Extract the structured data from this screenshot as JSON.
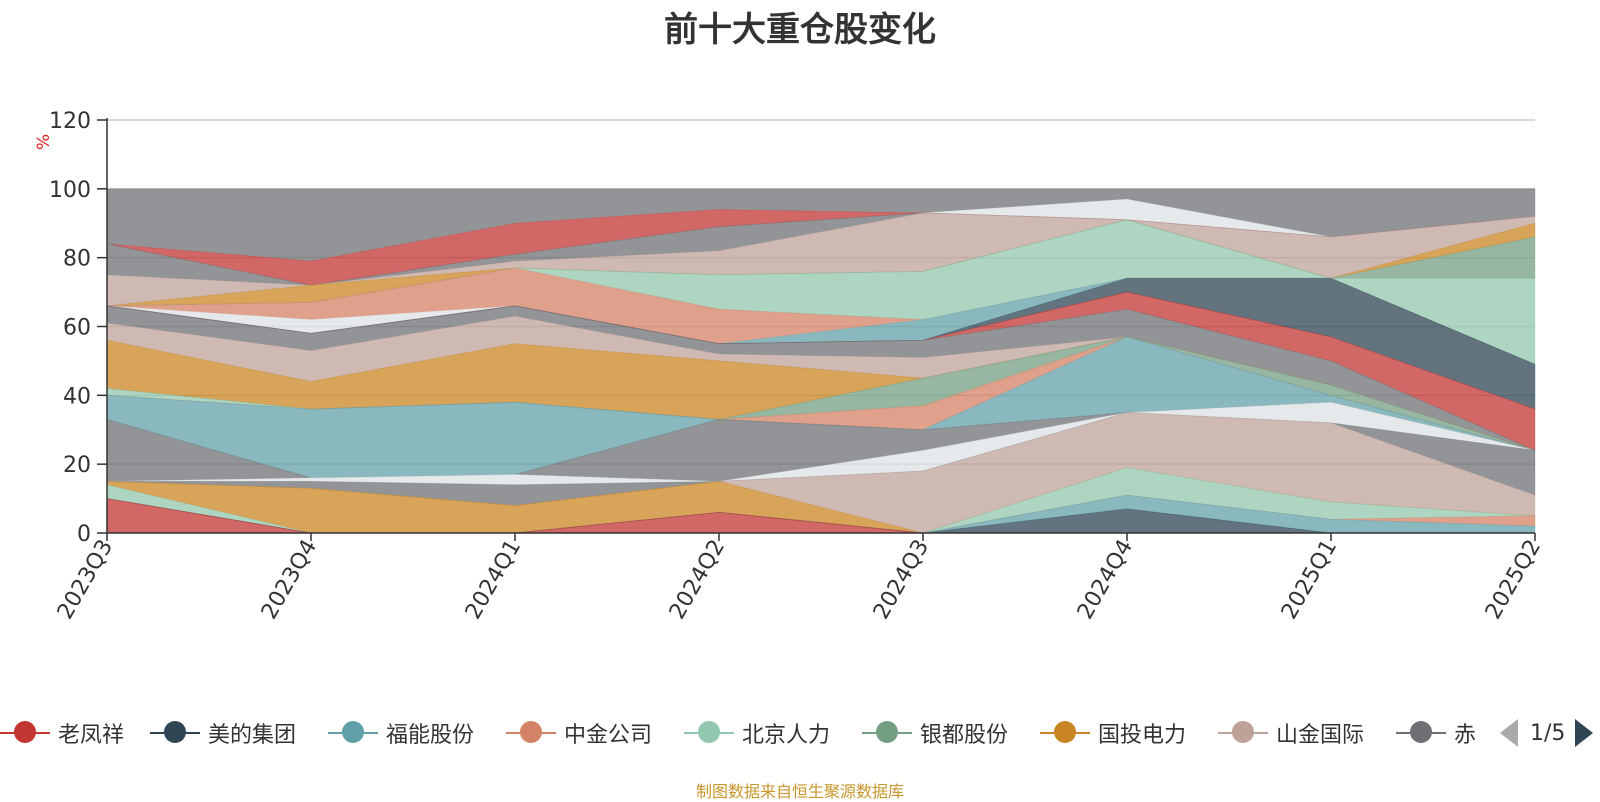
{
  "title": "前十大重仓股变化",
  "unit": "%",
  "source": "制图数据来自恒生聚源数据库",
  "pager": {
    "text": "1/5"
  },
  "legend": [
    {
      "name": "老凤祥",
      "color": "#c23531"
    },
    {
      "name": "美的集团",
      "color": "#2f4554"
    },
    {
      "name": "福能股份",
      "color": "#61a0a8"
    },
    {
      "name": "中金公司",
      "color": "#d48265"
    },
    {
      "name": "北京人力",
      "color": "#91c7ae"
    },
    {
      "name": "银都股份",
      "color": "#749f83"
    },
    {
      "name": "国投电力",
      "color": "#ca8622"
    },
    {
      "name": "山金国际",
      "color": "#bda29a"
    },
    {
      "name": "赤",
      "color": "#6e7074"
    }
  ],
  "chart_data": {
    "type": "area",
    "title": "前十大重仓股变化",
    "ylabel": "%",
    "x": [
      "2023Q3",
      "2023Q4",
      "2024Q1",
      "2024Q2",
      "2024Q3",
      "2024Q4",
      "2025Q1",
      "2025Q2"
    ],
    "ylim": [
      0,
      120
    ],
    "yticks": [
      0,
      20,
      40,
      60,
      80,
      100,
      120
    ],
    "grid": true,
    "legend_position": "bottom",
    "bands": [
      {
        "color": "#6e7074",
        "upper": [
          100,
          100,
          100,
          100,
          100,
          100,
          100,
          100
        ],
        "lower": [
          84,
          79,
          90,
          94,
          93,
          97,
          86,
          92
        ]
      },
      {
        "color": "#dde1e6",
        "upper": [
          84,
          79,
          90,
          94,
          93,
          97,
          86,
          92
        ],
        "lower": [
          84,
          79,
          90,
          94,
          93,
          91,
          86,
          92
        ]
      },
      {
        "color": "#c23531",
        "upper": [
          84,
          79,
          90,
          94,
          93,
          91,
          86,
          92
        ],
        "lower": [
          84,
          72,
          81,
          89,
          93,
          91,
          86,
          92
        ]
      },
      {
        "color": "#6e7074",
        "upper": [
          84,
          72,
          81,
          89,
          93,
          91,
          86,
          92
        ],
        "lower": [
          75,
          72,
          79,
          82,
          93,
          91,
          86,
          92
        ]
      },
      {
        "color": "#bda29a",
        "upper": [
          75,
          72,
          79,
          82,
          93,
          91,
          86,
          92
        ],
        "lower": [
          66,
          72,
          77,
          75,
          76,
          91,
          74,
          90
        ]
      },
      {
        "color": "#ca8622",
        "upper": [
          66,
          72,
          77,
          75,
          76,
          91,
          74,
          90
        ],
        "lower": [
          66,
          67,
          77,
          75,
          76,
          91,
          74,
          86
        ]
      },
      {
        "color": "#749f83",
        "upper": [
          66,
          67,
          77,
          75,
          76,
          91,
          74,
          86
        ],
        "lower": [
          66,
          67,
          77,
          75,
          76,
          91,
          74,
          74
        ]
      },
      {
        "color": "#91c7ae",
        "upper": [
          66,
          67,
          77,
          75,
          76,
          91,
          74,
          74
        ],
        "lower": [
          66,
          67,
          77,
          65,
          62,
          74,
          74,
          49
        ]
      },
      {
        "color": "#d48265",
        "upper": [
          66,
          67,
          77,
          65,
          62,
          74,
          74,
          49
        ],
        "lower": [
          66,
          62,
          66,
          55,
          62,
          74,
          74,
          49
        ]
      },
      {
        "color": "#dde1e6",
        "upper": [
          66,
          62,
          66,
          55,
          62,
          74,
          74,
          49
        ],
        "lower": [
          66,
          58,
          66,
          55,
          62,
          74,
          74,
          49
        ]
      },
      {
        "color": "#61a0a8",
        "upper": [
          66,
          58,
          66,
          55,
          62,
          74,
          74,
          49
        ],
        "lower": [
          66,
          58,
          66,
          55,
          56,
          74,
          74,
          49
        ]
      },
      {
        "color": "#2f4554",
        "upper": [
          66,
          58,
          66,
          55,
          56,
          74,
          74,
          49
        ],
        "lower": [
          66,
          58,
          66,
          55,
          56,
          70,
          57,
          36
        ]
      },
      {
        "color": "#c23531",
        "upper": [
          66,
          58,
          66,
          55,
          56,
          70,
          57,
          36
        ],
        "lower": [
          66,
          58,
          66,
          55,
          56,
          65,
          50,
          24
        ]
      },
      {
        "color": "#6e7074",
        "upper": [
          66,
          58,
          66,
          55,
          56,
          65,
          50,
          24
        ],
        "lower": [
          61,
          53,
          63,
          52,
          51,
          57,
          43,
          24
        ]
      },
      {
        "color": "#bda29a",
        "upper": [
          61,
          53,
          63,
          52,
          51,
          57,
          43,
          24
        ],
        "lower": [
          56,
          44,
          55,
          50,
          45,
          57,
          43,
          24
        ]
      },
      {
        "color": "#ca8622",
        "upper": [
          56,
          44,
          55,
          50,
          45,
          57,
          43,
          24
        ],
        "lower": [
          42,
          36,
          38,
          33,
          45,
          57,
          43,
          24
        ]
      },
      {
        "color": "#749f83",
        "upper": [
          42,
          36,
          38,
          33,
          45,
          57,
          43,
          24
        ],
        "lower": [
          42,
          36,
          38,
          33,
          37,
          57,
          40,
          24
        ]
      },
      {
        "color": "#91c7ae",
        "upper": [
          42,
          36,
          38,
          33,
          37,
          57,
          40,
          24
        ],
        "lower": [
          40,
          36,
          38,
          33,
          37,
          57,
          40,
          24
        ]
      },
      {
        "color": "#d48265",
        "upper": [
          40,
          36,
          38,
          33,
          37,
          57,
          40,
          24
        ],
        "lower": [
          40,
          36,
          38,
          33,
          30,
          57,
          40,
          24
        ]
      },
      {
        "color": "#61a0a8",
        "upper": [
          40,
          36,
          38,
          33,
          30,
          57,
          40,
          24
        ],
        "lower": [
          33,
          16,
          17,
          33,
          30,
          35,
          38,
          24
        ]
      },
      {
        "color": "#6e7074",
        "upper": [
          33,
          16,
          17,
          33,
          30,
          35,
          38,
          24
        ],
        "lower": [
          15,
          16,
          17,
          15,
          24,
          35,
          38,
          24
        ]
      },
      {
        "color": "#dde1e6",
        "upper": [
          15,
          16,
          17,
          15,
          24,
          35,
          38,
          24
        ],
        "lower": [
          15,
          15,
          14,
          15,
          18,
          35,
          32,
          24
        ]
      },
      {
        "color": "#6e7074",
        "upper": [
          15,
          15,
          14,
          15,
          18,
          35,
          32,
          24
        ],
        "lower": [
          15,
          13,
          8,
          15,
          18,
          35,
          32,
          11
        ]
      },
      {
        "color": "#bda29a",
        "upper": [
          15,
          13,
          8,
          15,
          18,
          35,
          32,
          11
        ],
        "lower": [
          15,
          13,
          8,
          15,
          0,
          19,
          9,
          5
        ]
      },
      {
        "color": "#ca8622",
        "upper": [
          15,
          13,
          8,
          15,
          0,
          19,
          9,
          5
        ],
        "lower": [
          14,
          0,
          0,
          6,
          0,
          19,
          9,
          5
        ]
      },
      {
        "color": "#91c7ae",
        "upper": [
          14,
          0,
          0,
          6,
          0,
          19,
          9,
          5
        ],
        "lower": [
          10,
          0,
          0,
          6,
          0,
          11,
          4,
          5
        ]
      },
      {
        "color": "#d48265",
        "upper": [
          10,
          0,
          0,
          6,
          0,
          11,
          4,
          5
        ],
        "lower": [
          10,
          0,
          0,
          6,
          0,
          11,
          4,
          2
        ]
      },
      {
        "color": "#61a0a8",
        "upper": [
          10,
          0,
          0,
          6,
          0,
          11,
          4,
          2
        ],
        "lower": [
          10,
          0,
          0,
          6,
          0,
          7,
          0,
          0
        ]
      },
      {
        "color": "#2f4554",
        "upper": [
          10,
          0,
          0,
          6,
          0,
          7,
          0,
          0
        ],
        "lower": [
          10,
          0,
          0,
          6,
          0,
          0,
          0,
          0
        ]
      },
      {
        "color": "#c23531",
        "upper": [
          10,
          0,
          0,
          6,
          0,
          0,
          0,
          0
        ],
        "lower": [
          0,
          0,
          0,
          0,
          0,
          0,
          0,
          0
        ]
      }
    ]
  }
}
